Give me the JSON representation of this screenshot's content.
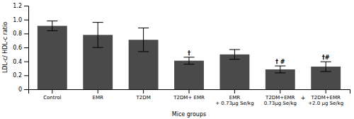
{
  "chart_data": {
    "type": "bar",
    "categories": [
      "Control",
      "EMR",
      "T2DM",
      "T2DM+ EMR",
      "EMR\n+ 0.73μg Se/kg",
      "T2DM+EMR\n0.73μg Se/kg",
      "T2DM+EMR\n+2.0 μg Se/kg"
    ],
    "values": [
      0.91,
      0.78,
      0.71,
      0.41,
      0.5,
      0.285,
      0.325
    ],
    "errors": [
      0.07,
      0.18,
      0.17,
      0.05,
      0.07,
      0.05,
      0.07
    ],
    "color": "#4a4a4a",
    "ylabel": "LDL-c/ HDL-c ratio",
    "xlabel": "Mice groups",
    "ylim": [
      0,
      1.2
    ],
    "yticks": [
      0,
      0.2,
      0.4,
      0.6,
      0.8,
      {
        "value": 1.0,
        "label": "1.0"
      },
      1.2
    ],
    "annotations": [
      {
        "text": "†",
        "category": "T2DM+ EMR"
      },
      {
        "text": "† #",
        "category": "T2DM+EMR\n0.73μg Se/kg"
      },
      {
        "text": "†#",
        "category": "T2DM+EMR\n+2.0 μg Se/kg"
      },
      {
        "text": "+",
        "between": [
          "T2DM+EMR\n0.73μg Se/kg",
          "T2DM+EMR\n+2.0 μg Se/kg"
        ]
      }
    ],
    "grid": false
  }
}
